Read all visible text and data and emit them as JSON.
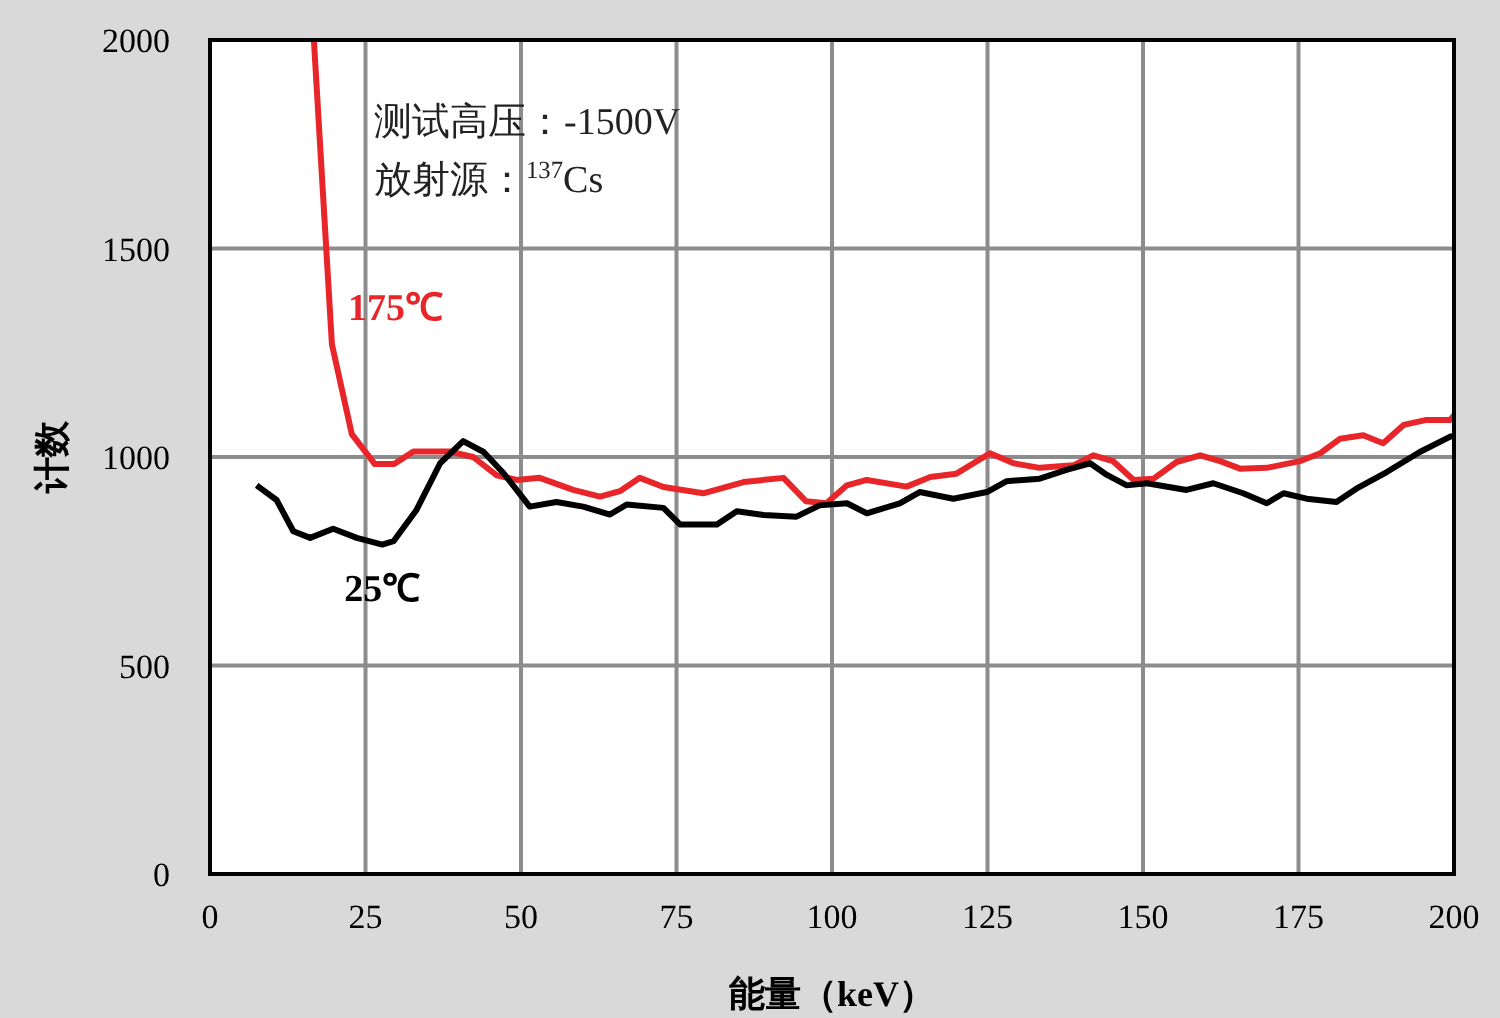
{
  "chart_data": {
    "type": "line",
    "xlabel": "能量（keV）",
    "ylabel": "计数",
    "xlim": [
      0,
      200
    ],
    "xticks": [
      0,
      25,
      50,
      75,
      100,
      125,
      150,
      175,
      200
    ],
    "ylim": [
      0,
      2000
    ],
    "yticks": [
      0,
      500,
      1000,
      1500,
      2000
    ],
    "grid": true,
    "marker": "none",
    "line_style": "solid",
    "annotations": [
      "测试高压：-1500V",
      "放射源：$^{137}$Cs"
    ],
    "series": [
      {
        "name": "175℃",
        "color": "#e8262a",
        "x": [
          16.7,
          19.6,
          22.8,
          26.5,
          29.6,
          32.7,
          38.6,
          42.3,
          46.1,
          49.3,
          53,
          58.4,
          62.7,
          65.9,
          69.1,
          72.9,
          79.3,
          85.8,
          92.2,
          95.8,
          99.1,
          102.4,
          105.6,
          112,
          115.8,
          120,
          125.4,
          129.2,
          133.4,
          138.8,
          142,
          145.2,
          148.5,
          151.7,
          155.4,
          159.2,
          162.4,
          165.6,
          169.9,
          175.2,
          178.5,
          181.7,
          185.4,
          188.6,
          191.9,
          195.6,
          199.4,
          200
        ],
        "values": [
          2000,
          1270,
          1055,
          983,
          983,
          1013,
          1013,
          1000,
          956,
          945,
          950,
          921,
          905,
          918,
          950,
          928,
          913,
          940,
          950,
          894,
          889,
          932,
          945,
          929,
          952,
          960,
          1009,
          985,
          974,
          980,
          1004,
          990,
          945,
          948,
          988,
          1004,
          990,
          972,
          974,
          990,
          1009,
          1044,
          1052,
          1033,
          1077,
          1089,
          1089,
          1100
        ]
      },
      {
        "name": "25℃",
        "color": "#000000",
        "x": [
          7.5,
          10.7,
          13.4,
          16.1,
          19.8,
          23.6,
          27.7,
          29.5,
          33.2,
          37,
          40.7,
          44,
          47.2,
          51.4,
          55.7,
          60,
          64.3,
          67,
          72.9,
          75.6,
          81.5,
          84.7,
          89,
          94.3,
          98,
          102.4,
          105.6,
          110.9,
          114.1,
          119.5,
          124.9,
          128.1,
          133.4,
          137.7,
          141.5,
          144.2,
          147.4,
          150.6,
          157,
          161.3,
          166.1,
          169.9,
          172.6,
          176.3,
          181.1,
          184.3,
          189.2,
          194.5,
          199.4,
          200
        ],
        "values": [
          932,
          897,
          822,
          806,
          828,
          806,
          790,
          798,
          873,
          985,
          1038,
          1012,
          961,
          881,
          892,
          881,
          862,
          886,
          878,
          838,
          838,
          870,
          861,
          857,
          884,
          889,
          865,
          889,
          916,
          900,
          916,
          942,
          948,
          969,
          985,
          957,
          932,
          937,
          921,
          937,
          913,
          889,
          913,
          900,
          892,
          924,
          964,
          1012,
          1049,
          1050
        ]
      }
    ]
  }
}
